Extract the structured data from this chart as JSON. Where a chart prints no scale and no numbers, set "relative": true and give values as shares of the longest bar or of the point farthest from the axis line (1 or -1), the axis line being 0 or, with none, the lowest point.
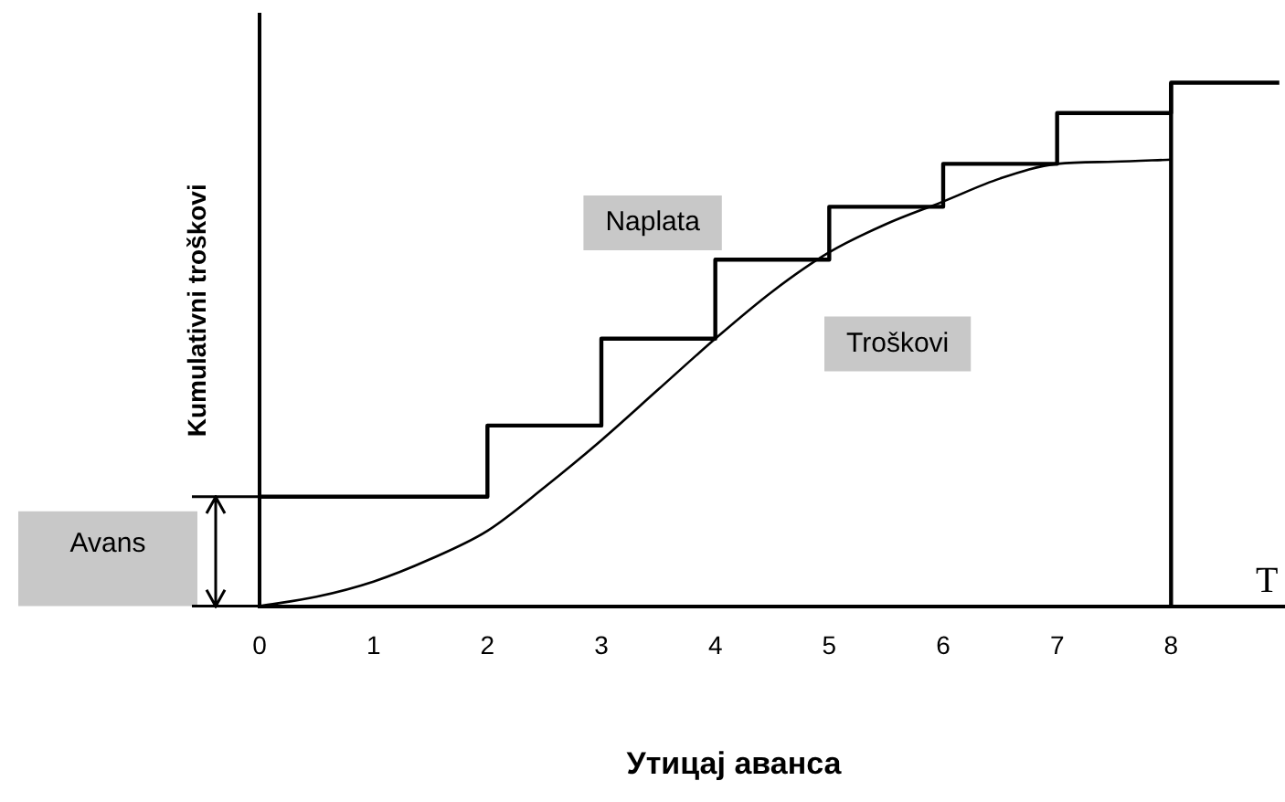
{
  "chart_data": {
    "type": "line",
    "title": "Утицај аванса",
    "xlabel": "T",
    "ylabel": "Kumulativni troškovi",
    "relative": true,
    "xlim": [
      0,
      9
    ],
    "xticks": [
      0,
      1,
      2,
      3,
      4,
      5,
      6,
      7,
      8
    ],
    "grid": false,
    "legend": false,
    "marker": "none",
    "line_style": "solid",
    "annotations": [
      "Avans"
    ],
    "ref_lines": [
      {
        "axis": "x",
        "value": 8,
        "color": "#000000"
      }
    ],
    "series": [
      {
        "name": "Naplata",
        "type": "step",
        "color": "#000000",
        "x": [
          0,
          2,
          3,
          4,
          5,
          6,
          7,
          8,
          8.95
        ],
        "values": [
          0.209,
          0.345,
          0.511,
          0.662,
          0.763,
          0.845,
          0.942,
          1.0,
          1.0
        ]
      },
      {
        "name": "Troškovi",
        "type": "line",
        "color": "#000000",
        "x": [
          0,
          0.5,
          1,
          1.5,
          2,
          2.5,
          3,
          3.5,
          4,
          4.5,
          5,
          5.5,
          6,
          6.5,
          7,
          7.5,
          8
        ],
        "values": [
          0,
          0.018,
          0.047,
          0.09,
          0.144,
          0.227,
          0.317,
          0.414,
          0.511,
          0.601,
          0.676,
          0.73,
          0.773,
          0.817,
          0.845,
          0.849,
          0.853
        ]
      }
    ]
  }
}
